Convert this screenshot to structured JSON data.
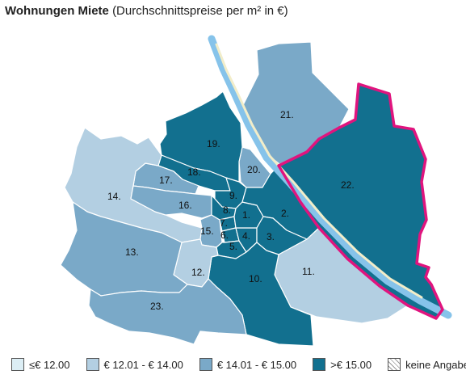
{
  "title": {
    "bold": "Wohnungen Miete",
    "normal": "(Durchschnittspreise per m² in €)"
  },
  "colors": {
    "cat1": "#dceef5",
    "cat2": "#b3cfe2",
    "cat3": "#7aa9c8",
    "cat4": "#12708f",
    "border": "#ffffff",
    "river": "#86c3ea",
    "island": "#f2edc9",
    "highlight": "#e0147e"
  },
  "legend": [
    {
      "label": "≤€ 12.00",
      "category": "cat1"
    },
    {
      "label": "€ 12.01 - € 14.00",
      "category": "cat2"
    },
    {
      "label": "€ 14.01 - € 15.00",
      "category": "cat3"
    },
    {
      "label": ">€ 15.00",
      "category": "cat4"
    },
    {
      "label": "keine Angabe",
      "category": "none"
    }
  ],
  "districts": [
    {
      "label": "1.",
      "category": "cat4"
    },
    {
      "label": "2.",
      "category": "cat4"
    },
    {
      "label": "3.",
      "category": "cat4"
    },
    {
      "label": "4.",
      "category": "cat4"
    },
    {
      "label": "5.",
      "category": "cat4"
    },
    {
      "label": "6.",
      "category": "cat4"
    },
    {
      "label": "7.",
      "category": "cat4"
    },
    {
      "label": "8.",
      "category": "cat4"
    },
    {
      "label": "9.",
      "category": "cat4"
    },
    {
      "label": "10.",
      "category": "cat4"
    },
    {
      "label": "11.",
      "category": "cat2"
    },
    {
      "label": "12.",
      "category": "cat2"
    },
    {
      "label": "13.",
      "category": "cat3"
    },
    {
      "label": "14.",
      "category": "cat2"
    },
    {
      "label": "15.",
      "category": "cat3"
    },
    {
      "label": "16.",
      "category": "cat3"
    },
    {
      "label": "17.",
      "category": "cat3"
    },
    {
      "label": "18.",
      "category": "cat4"
    },
    {
      "label": "19.",
      "category": "cat4"
    },
    {
      "label": "20.",
      "category": "cat3"
    },
    {
      "label": "21.",
      "category": "cat3"
    },
    {
      "label": "22.",
      "category": "cat4",
      "highlighted": true
    },
    {
      "label": "23.",
      "category": "cat3"
    }
  ]
}
